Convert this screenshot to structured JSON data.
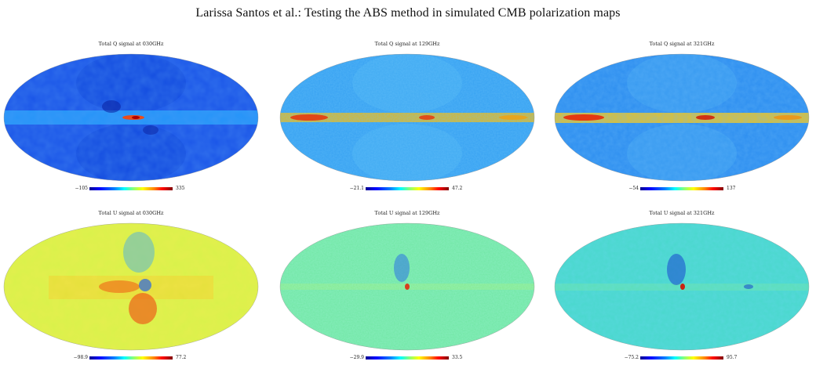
{
  "header": "Larissa Santos et al.: Testing the ABS method in simulated CMB polarization maps",
  "panels": [
    {
      "title": "Total Q signal at 030GHz",
      "min": "−105",
      "max": "335",
      "base": "#1a55e8",
      "band": "#28a9ff",
      "lobes": "#0f45d8"
    },
    {
      "title": "Total Q signal at 129GHz",
      "min": "−21.1",
      "max": "47.2",
      "base": "#37a2f2",
      "band": "#f0ba10",
      "lobes": "#4fb9f5"
    },
    {
      "title": "Total Q signal at 321GHz",
      "min": "−54",
      "max": "137",
      "base": "#2e8ff0",
      "band": "#f6c81a",
      "lobes": "#47aaf2"
    },
    {
      "title": "Total U signal at 030GHz",
      "min": "−98.9",
      "max": "77.2",
      "base": "#d8f24a",
      "band": "#ffc020",
      "lobes": "#e6ff36"
    },
    {
      "title": "Total U signal at 129GHz",
      "min": "−29.9",
      "max": "33.5",
      "base": "#71e7a4",
      "band": "#9bf07c",
      "lobes": "#5fdfb4"
    },
    {
      "title": "Total U signal at 321GHz",
      "min": "−75.2",
      "max": "95.7",
      "base": "#49d8cc",
      "band": "#7aec9a",
      "lobes": "#34c6e2"
    }
  ]
}
